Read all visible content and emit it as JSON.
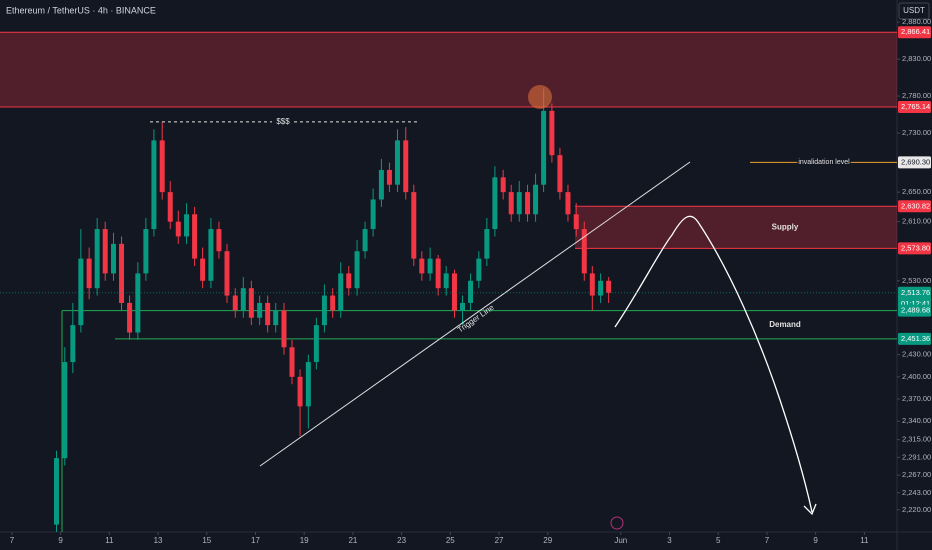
{
  "chart_data": {
    "type": "candlestick",
    "title": "Ethereum / TetherUS · 4h · BINANCE",
    "currency": "USDT",
    "countdown": "01:12:41",
    "annotations": {
      "liquidity": "$$$",
      "trigger": "Trigger Line",
      "invalidation": "invalidation level",
      "supply": "Supply",
      "demand": "Demand"
    },
    "up_color": "#089981",
    "down_color": "#f23645",
    "grid": false,
    "xlim": [
      -0.49,
      36.34
    ],
    "xticks": [
      {
        "value": 0,
        "label": "7"
      },
      {
        "value": 2,
        "label": "9"
      },
      {
        "value": 4,
        "label": "11"
      },
      {
        "value": 6,
        "label": "13"
      },
      {
        "value": 8,
        "label": "15"
      },
      {
        "value": 10,
        "label": "17"
      },
      {
        "value": 12,
        "label": "19"
      },
      {
        "value": 14,
        "label": "21"
      },
      {
        "value": 16,
        "label": "23"
      },
      {
        "value": 18,
        "label": "25"
      },
      {
        "value": 20,
        "label": "27"
      },
      {
        "value": 22,
        "label": "29"
      },
      {
        "value": 25,
        "label": "Jun"
      },
      {
        "value": 27,
        "label": "3"
      },
      {
        "value": 29,
        "label": "5"
      },
      {
        "value": 31,
        "label": "7"
      },
      {
        "value": 33,
        "label": "9"
      },
      {
        "value": 35,
        "label": "11"
      }
    ],
    "ylim": [
      2190,
      2910
    ],
    "yticks": [
      {
        "value": 2880,
        "label": "2,880.00"
      },
      {
        "value": 2830,
        "label": "2,830.00"
      },
      {
        "value": 2780,
        "label": "2,780.00"
      },
      {
        "value": 2730,
        "label": "2,730.00"
      },
      {
        "value": 2650,
        "label": "2,650.00"
      },
      {
        "value": 2610,
        "label": "2,610.00"
      },
      {
        "value": 2530,
        "label": "2,530.00"
      },
      {
        "value": 2430,
        "label": "2,430.00"
      },
      {
        "value": 2400,
        "label": "2,400.00"
      },
      {
        "value": 2370,
        "label": "2,370.00"
      },
      {
        "value": 2340,
        "label": "2,340.00"
      },
      {
        "value": 2315,
        "label": "2,315.00"
      },
      {
        "value": 2291,
        "label": "2,291.00"
      },
      {
        "value": 2267,
        "label": "2,267.00"
      },
      {
        "value": 2243,
        "label": "2,243.00"
      },
      {
        "value": 2220,
        "label": "2,220.00"
      }
    ],
    "price_labels": [
      {
        "value": 2866.41,
        "label": "2,866.41",
        "color": "#f23645"
      },
      {
        "value": 2765.14,
        "label": "2,765.14",
        "color": "#f23645"
      },
      {
        "value": 2690.3,
        "label": "2,690.30",
        "color": "#e8e8e8"
      },
      {
        "value": 2630.82,
        "label": "2,630.82",
        "color": "#f23645"
      },
      {
        "value": 2573.8,
        "label": "2,573.80",
        "color": "#f23645"
      },
      {
        "value": 2513.76,
        "label": "2,513.76",
        "color": "#089981"
      },
      {
        "value": 2489.68,
        "label": "2,489.68",
        "color": "#089981"
      },
      {
        "value": 2451.36,
        "label": "2,451.36",
        "color": "#089981"
      }
    ],
    "x": [
      1.83,
      2.17,
      2.5,
      2.83,
      3.17,
      3.5,
      3.83,
      4.17,
      4.5,
      4.83,
      5.17,
      5.5,
      5.83,
      6.17,
      6.5,
      6.83,
      7.17,
      7.5,
      7.83,
      8.17,
      8.5,
      8.83,
      9.17,
      9.5,
      9.83,
      10.17,
      10.5,
      10.83,
      11.17,
      11.5,
      11.83,
      12.17,
      12.5,
      12.83,
      13.17,
      13.5,
      13.83,
      14.17,
      14.5,
      14.83,
      15.17,
      15.5,
      15.83,
      16.17,
      16.5,
      16.83,
      17.17,
      17.5,
      17.83,
      18.17,
      18.5,
      18.83,
      19.17,
      19.5,
      19.83,
      20.17,
      20.5,
      20.83,
      21.17,
      21.5,
      21.83,
      22.17,
      22.5,
      22.83,
      23.17,
      23.5,
      23.83,
      24.17,
      24.5
    ],
    "open": [
      2200,
      2290,
      2420,
      2470,
      2560,
      2520,
      2600,
      2540,
      2580,
      2500,
      2460,
      2540,
      2600,
      2720,
      2650,
      2610,
      2590,
      2620,
      2560,
      2530,
      2600,
      2570,
      2510,
      2490,
      2520,
      2480,
      2500,
      2470,
      2490,
      2440,
      2400,
      2360,
      2420,
      2470,
      2510,
      2490,
      2540,
      2520,
      2570,
      2600,
      2640,
      2680,
      2660,
      2720,
      2650,
      2560,
      2540,
      2560,
      2520,
      2540,
      2490,
      2500,
      2530,
      2560,
      2600,
      2670,
      2650,
      2620,
      2650,
      2620,
      2660,
      2760,
      2700,
      2650,
      2620,
      2600,
      2540,
      2510,
      2530
    ],
    "close": [
      2290,
      2420,
      2470,
      2560,
      2520,
      2600,
      2540,
      2580,
      2500,
      2460,
      2540,
      2600,
      2720,
      2650,
      2610,
      2590,
      2620,
      2560,
      2530,
      2600,
      2570,
      2510,
      2490,
      2520,
      2480,
      2500,
      2470,
      2490,
      2440,
      2400,
      2360,
      2420,
      2470,
      2510,
      2490,
      2540,
      2520,
      2570,
      2600,
      2640,
      2680,
      2660,
      2720,
      2650,
      2560,
      2540,
      2560,
      2520,
      2540,
      2490,
      2500,
      2530,
      2560,
      2600,
      2670,
      2650,
      2620,
      2650,
      2620,
      2660,
      2760,
      2700,
      2650,
      2620,
      2600,
      2540,
      2510,
      2530,
      2513.76
    ],
    "high": [
      2300,
      2440,
      2500,
      2600,
      2575,
      2615,
      2610,
      2595,
      2590,
      2510,
      2555,
      2615,
      2735,
      2745,
      2665,
      2625,
      2635,
      2630,
      2575,
      2615,
      2610,
      2580,
      2520,
      2535,
      2530,
      2510,
      2510,
      2500,
      2500,
      2450,
      2410,
      2430,
      2480,
      2525,
      2520,
      2555,
      2550,
      2585,
      2610,
      2655,
      2695,
      2690,
      2735,
      2738,
      2660,
      2570,
      2575,
      2565,
      2550,
      2545,
      2510,
      2540,
      2570,
      2615,
      2685,
      2680,
      2660,
      2665,
      2660,
      2675,
      2790,
      2770,
      2710,
      2660,
      2635,
      2610,
      2550,
      2540,
      2535
    ],
    "low": [
      2190,
      2280,
      2405,
      2460,
      2505,
      2510,
      2530,
      2530,
      2490,
      2450,
      2450,
      2530,
      2590,
      2640,
      2600,
      2580,
      2580,
      2550,
      2520,
      2520,
      2560,
      2500,
      2480,
      2480,
      2470,
      2470,
      2460,
      2460,
      2430,
      2390,
      2320,
      2330,
      2410,
      2460,
      2480,
      2480,
      2510,
      2510,
      2560,
      2590,
      2630,
      2650,
      2650,
      2640,
      2550,
      2530,
      2530,
      2510,
      2510,
      2480,
      2470,
      2490,
      2520,
      2550,
      2590,
      2640,
      2610,
      2610,
      2610,
      2610,
      2650,
      2690,
      2640,
      2610,
      2590,
      2530,
      2490,
      2500,
      2500
    ]
  }
}
